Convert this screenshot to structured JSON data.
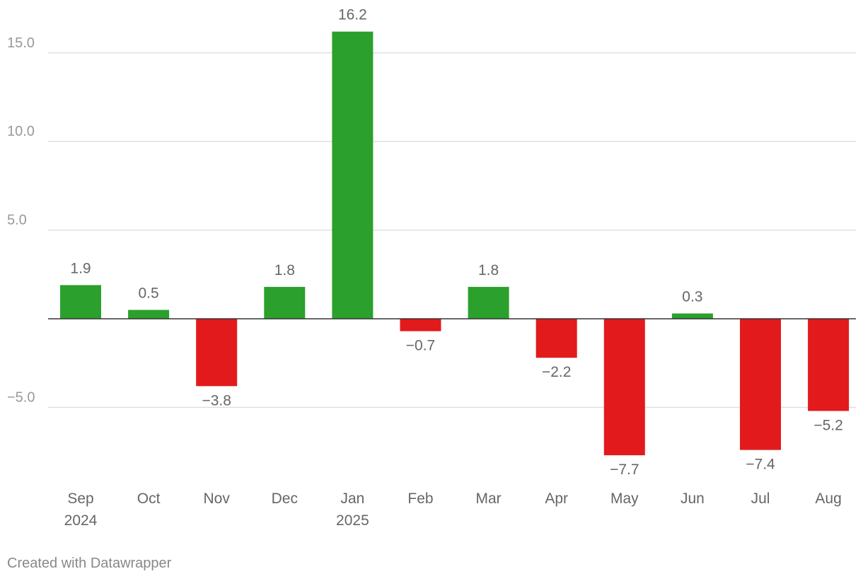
{
  "chart_data": {
    "type": "bar",
    "title": "",
    "xlabel": "",
    "ylabel": "",
    "categories": [
      "Sep",
      "Oct",
      "Nov",
      "Dec",
      "Jan",
      "Feb",
      "Mar",
      "Apr",
      "May",
      "Jun",
      "Jul",
      "Aug"
    ],
    "category_sublabels": [
      "2024",
      "",
      "",
      "",
      "2025",
      "",
      "",
      "",
      "",
      "",
      "",
      ""
    ],
    "values": [
      1.9,
      0.5,
      -3.8,
      1.8,
      16.2,
      -0.7,
      1.8,
      -2.2,
      -7.7,
      0.3,
      -7.4,
      -5.2
    ],
    "value_labels": [
      "1.9",
      "0.5",
      "−3.8",
      "1.8",
      "16.2",
      "−0.7",
      "1.8",
      "−2.2",
      "−7.7",
      "0.3",
      "−7.4",
      "−5.2"
    ],
    "yticks": [
      15,
      10,
      5,
      -5
    ],
    "ytick_labels": [
      "15.0",
      "10.0",
      "5.0",
      "−5.0"
    ],
    "ylim": [
      -9.5,
      17
    ],
    "grid": true,
    "legend": "none",
    "colors": {
      "positive": "#2ca02c",
      "negative": "#e31a1c",
      "grid": "#e0e0e0",
      "zero_line": "#333333",
      "tick_text": "#999999",
      "label_text": "#666666"
    }
  },
  "footer": {
    "credit": "Created with Datawrapper"
  }
}
